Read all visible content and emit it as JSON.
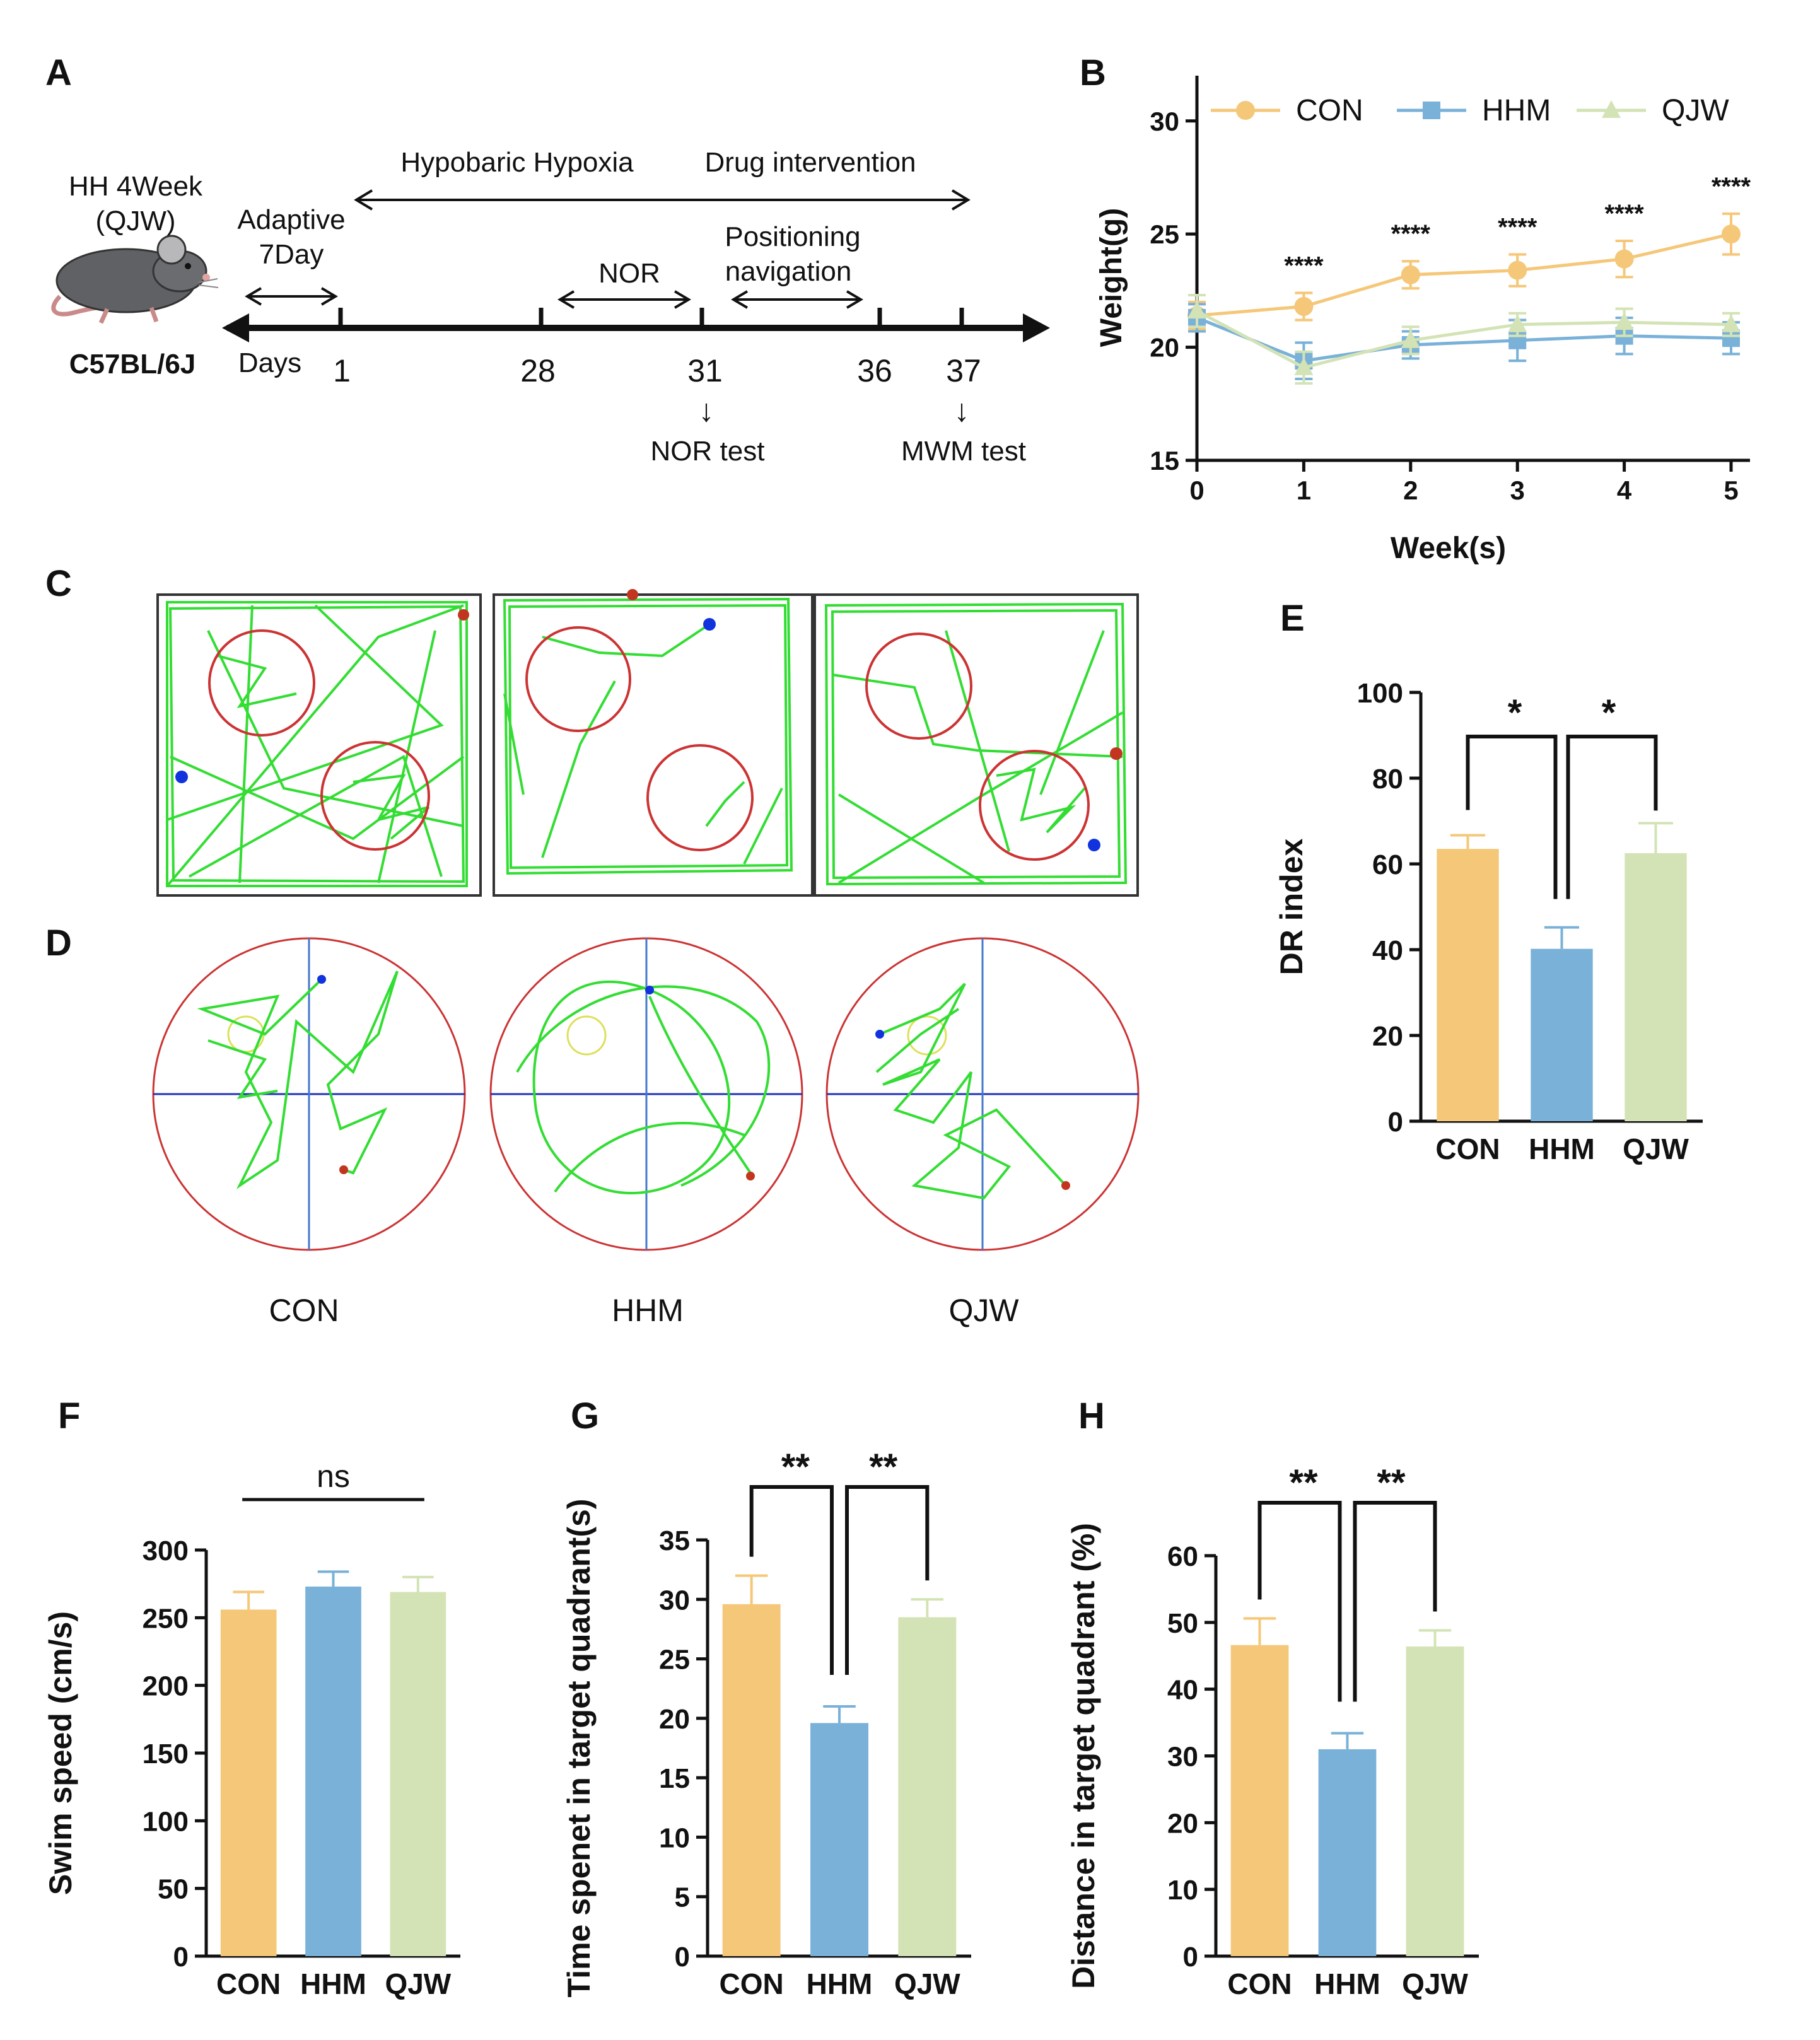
{
  "panel_letters": {
    "A": "A",
    "B": "B",
    "C": "C",
    "D": "D",
    "E": "E",
    "F": "F",
    "G": "G",
    "H": "H"
  },
  "colors": {
    "con": "#F5C778",
    "hhm": "#79B1D8",
    "qjw": "#D3E3B5",
    "track": "#33DD33",
    "arena": "#CC3333",
    "axis": "#111111"
  },
  "timeline": {
    "group_line1": "HH  4Week",
    "group_line2": "(QJW)",
    "strain": "C57BL/6J",
    "adaptive_line1": "Adaptive",
    "adaptive_line2": "7Day",
    "hypoxia": "Hypobaric Hypoxia",
    "drug": "Drug intervention",
    "nor": "NOR",
    "pos_line1": "Positioning",
    "pos_line2": "navigation",
    "days_label": "Days",
    "ticks": [
      "1",
      "28",
      "31",
      "36",
      "37"
    ],
    "nor_test": "NOR test",
    "mwm_test": "MWM test",
    "arrow_glyph": "↓"
  },
  "panel_c_icons": {
    "nor_arena_1": "open-field-track",
    "nor_arena_2": "open-field-track",
    "nor_arena_3": "open-field-track"
  },
  "panel_d": {
    "labels": [
      "CON",
      "HHM",
      "QJW"
    ]
  },
  "chart_data": [
    {
      "panel": "B",
      "type": "line",
      "xlabel": "Week(s)",
      "ylabel": "Weight(g)",
      "xlim": [
        0,
        5
      ],
      "ylim": [
        15,
        32
      ],
      "yticks": [
        "15",
        "20",
        "25",
        "30"
      ],
      "xticks": [
        "0",
        "1",
        "2",
        "3",
        "4",
        "5"
      ],
      "x": [
        0,
        1,
        2,
        3,
        4,
        5
      ],
      "series": [
        {
          "name": "CON",
          "values": [
            21.4,
            21.8,
            23.2,
            23.4,
            23.9,
            25.0
          ],
          "errors": [
            0.6,
            0.6,
            0.6,
            0.7,
            0.8,
            0.9
          ]
        },
        {
          "name": "HHM",
          "values": [
            21.3,
            19.4,
            20.1,
            20.3,
            20.5,
            20.4
          ],
          "errors": [
            0.6,
            0.8,
            0.6,
            0.9,
            0.8,
            0.7
          ]
        },
        {
          "name": "QJW",
          "values": [
            21.6,
            19.1,
            20.3,
            21.0,
            21.1,
            21.0
          ],
          "errors": [
            0.7,
            0.7,
            0.6,
            0.5,
            0.6,
            0.5
          ]
        }
      ],
      "significance": [
        "****",
        "****",
        "****",
        "****",
        "****"
      ],
      "legend": "top"
    },
    {
      "panel": "E",
      "type": "bar",
      "ylabel": "DR index",
      "ylim": [
        0,
        100
      ],
      "yticks": [
        "0",
        "20",
        "40",
        "60",
        "80",
        "100"
      ],
      "categories": [
        "CON",
        "HHM",
        "QJW"
      ],
      "values": [
        63.5,
        40.2,
        62.5
      ],
      "errors": [
        3.2,
        5.0,
        7.0
      ],
      "significance": [
        "*",
        "*"
      ]
    },
    {
      "panel": "F",
      "type": "bar",
      "ylabel": "Swim speed (cm/s)",
      "ylim": [
        0,
        300
      ],
      "yticks": [
        "0",
        "50",
        "100",
        "150",
        "200",
        "250",
        "300"
      ],
      "categories": [
        "CON",
        "HHM",
        "QJW"
      ],
      "values": [
        256,
        273,
        269
      ],
      "errors": [
        13,
        11,
        11
      ],
      "significance": [
        "ns"
      ]
    },
    {
      "panel": "G",
      "type": "bar",
      "ylabel": "Time spenet in target quadrant(s)",
      "ylim": [
        0,
        35
      ],
      "yticks": [
        "0",
        "5",
        "10",
        "15",
        "20",
        "25",
        "30",
        "35"
      ],
      "categories": [
        "CON",
        "HHM",
        "QJW"
      ],
      "values": [
        29.6,
        19.6,
        28.5
      ],
      "errors": [
        2.4,
        1.4,
        1.5
      ],
      "significance": [
        "**",
        "**"
      ]
    },
    {
      "panel": "H",
      "type": "bar",
      "ylabel": "Distance in target quadrant (%)",
      "ylim": [
        0,
        60
      ],
      "yticks": [
        "0",
        "10",
        "20",
        "30",
        "40",
        "50",
        "60"
      ],
      "categories": [
        "CON",
        "HHM",
        "QJW"
      ],
      "values": [
        46.6,
        31.0,
        46.4
      ],
      "errors": [
        4.0,
        2.4,
        2.4
      ],
      "significance": [
        "**",
        "**"
      ]
    }
  ]
}
